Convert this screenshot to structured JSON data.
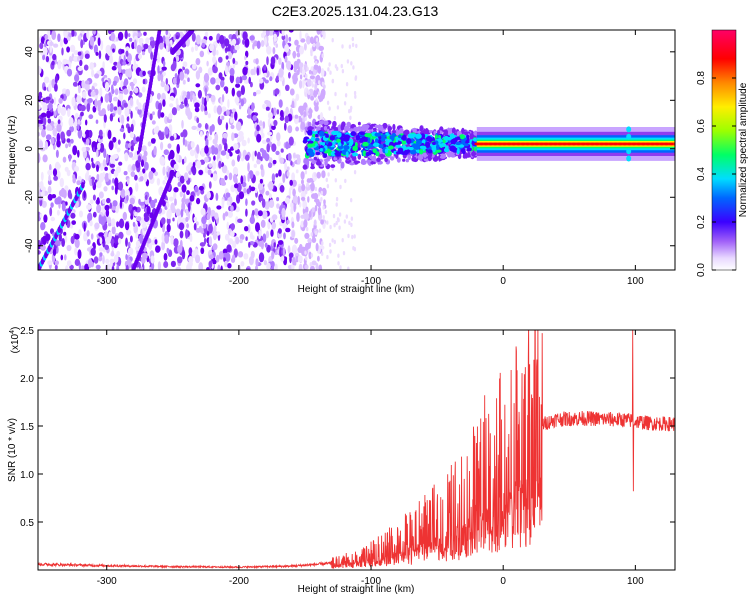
{
  "title": "C2E3.2025.131.04.23.G13",
  "chart_data": [
    {
      "type": "heatmap",
      "xlabel": "Height of straight line (km)",
      "ylabel": "Frequency (Hz)",
      "xlim": [
        -352,
        130
      ],
      "ylim": [
        -50,
        49
      ],
      "x_ticks": [
        -300,
        -200,
        -100,
        0,
        100
      ],
      "x_tick_labels": [
        "-300",
        "-200",
        "-100",
        "0",
        "100"
      ],
      "y_ticks": [
        -40,
        -20,
        0,
        20,
        40
      ],
      "y_tick_labels": [
        "-40",
        "-20",
        "0",
        "20",
        "40"
      ],
      "colorbar": {
        "label": "Normalized spectral amplitude",
        "range": [
          0.0,
          1.0
        ],
        "ticks": [
          0.0,
          0.2,
          0.4,
          0.6,
          0.8
        ],
        "tick_labels": [
          "0.0",
          "0.2",
          "0.4",
          "0.6",
          "0.8"
        ],
        "colors": [
          "#ffffff",
          "#e0c8ff",
          "#8f3cf0",
          "#3b00ff",
          "#0066ff",
          "#00e0ff",
          "#00ff66",
          "#9cff00",
          "#ffee00",
          "#ff8800",
          "#ff0000",
          "#ff0066"
        ]
      },
      "features": {
        "noise_region_x": [
          -352,
          -150
        ],
        "signal_center_freq": 2,
        "transition_x": [
          -150,
          -20
        ],
        "carrier_x": [
          -20,
          130
        ],
        "chirp_lines": [
          {
            "x_start": -352,
            "y_start": -50,
            "x_end": -318,
            "y_end": -15
          },
          {
            "x_start": -275,
            "y_start": 0,
            "x_end": -260,
            "y_end": 49
          },
          {
            "x_start": -250,
            "y_start": 40,
            "x_end": -235,
            "y_end": 49
          },
          {
            "x_start": -280,
            "y_start": -50,
            "x_end": -250,
            "y_end": -10
          }
        ]
      }
    },
    {
      "type": "line",
      "xlabel": "Height of straight line (km)",
      "ylabel": "SNR (10 * v/v)",
      "y_multiplier": "(x10",
      "y_multiplier_exp": "4",
      "y_multiplier_close": ")",
      "xlim": [
        -352,
        130
      ],
      "ylim": [
        0,
        25000
      ],
      "x_ticks": [
        -300,
        -200,
        -100,
        0,
        100
      ],
      "x_tick_labels": [
        "-300",
        "-200",
        "-100",
        "0",
        "100"
      ],
      "y_ticks": [
        5000,
        10000,
        15000,
        20000,
        25000
      ],
      "y_tick_labels": [
        "0.5",
        "1.0",
        "1.5",
        "2.0",
        "2.5"
      ],
      "series": [
        {
          "color": "#ee3333",
          "envelope": [
            {
              "x": -352,
              "y": 600
            },
            {
              "x": -300,
              "y": 450
            },
            {
              "x": -250,
              "y": 350
            },
            {
              "x": -200,
              "y": 300
            },
            {
              "x": -160,
              "y": 400
            },
            {
              "x": -130,
              "y": 700
            },
            {
              "x": -110,
              "y": 1200
            },
            {
              "x": -100,
              "y": 1600
            },
            {
              "x": -90,
              "y": 2200
            },
            {
              "x": -80,
              "y": 2800
            },
            {
              "x": -70,
              "y": 3500
            },
            {
              "x": -60,
              "y": 4200
            },
            {
              "x": -50,
              "y": 5000
            },
            {
              "x": -40,
              "y": 6000
            },
            {
              "x": -30,
              "y": 7200
            },
            {
              "x": -20,
              "y": 8500
            },
            {
              "x": -10,
              "y": 10000
            },
            {
              "x": 0,
              "y": 11500
            },
            {
              "x": 10,
              "y": 13000
            },
            {
              "x": 20,
              "y": 14300
            },
            {
              "x": 30,
              "y": 15200
            },
            {
              "x": 40,
              "y": 15700
            },
            {
              "x": 60,
              "y": 15800
            },
            {
              "x": 80,
              "y": 15700
            },
            {
              "x": 95,
              "y": 15600
            },
            {
              "x": 110,
              "y": 15300
            },
            {
              "x": 130,
              "y": 15200
            }
          ],
          "peaks": [
            {
              "x": -14,
              "y": 18200
            },
            {
              "x": 98,
              "y": 25000
            },
            {
              "x": 98.5,
              "y": 8200
            }
          ]
        }
      ]
    }
  ]
}
